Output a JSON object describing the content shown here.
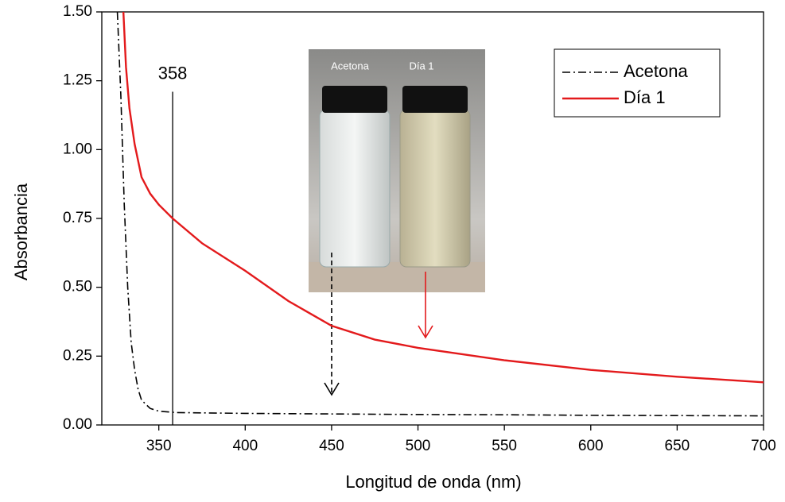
{
  "chart_data": {
    "type": "line",
    "x_label": "Longitud de onda (nm)",
    "y_label": "Absorbancia",
    "xlim": [
      317,
      700
    ],
    "ylim": [
      0,
      1.5
    ],
    "xticks": [
      350,
      400,
      450,
      500,
      550,
      600,
      650,
      700
    ],
    "yticks": [
      {
        "value": 0,
        "label": "0.00"
      },
      {
        "value": 0.25,
        "label": "0.25"
      },
      {
        "value": 0.5,
        "label": "0.50"
      },
      {
        "value": 0.75,
        "label": "0.75"
      },
      {
        "value": 1,
        "label": "1.00"
      },
      {
        "value": 1.25,
        "label": "1.25"
      },
      {
        "value": 1.5,
        "label": "1.50"
      }
    ],
    "legend": "upper right",
    "series": [
      {
        "name": "Acetona",
        "color": "#000000",
        "dash": "dash-dot",
        "x": [
          326,
          328,
          330,
          332,
          334,
          336,
          338,
          340,
          345,
          350,
          360,
          400,
          450,
          500,
          550,
          600,
          650,
          700
        ],
        "values": [
          1.5,
          1.2,
          0.8,
          0.5,
          0.3,
          0.2,
          0.13,
          0.09,
          0.06,
          0.05,
          0.045,
          0.042,
          0.04,
          0.038,
          0.037,
          0.035,
          0.034,
          0.033
        ]
      },
      {
        "name": "Día 1",
        "color": "#e31a1c",
        "dash": "solid",
        "x": [
          329.5,
          331,
          333,
          336,
          340,
          345,
          350,
          358,
          375,
          400,
          425,
          450,
          475,
          500,
          550,
          600,
          650,
          700
        ],
        "values": [
          1.5,
          1.3,
          1.15,
          1.02,
          0.9,
          0.84,
          0.8,
          0.75,
          0.66,
          0.56,
          0.45,
          0.36,
          0.31,
          0.28,
          0.235,
          0.2,
          0.175,
          0.155
        ]
      }
    ],
    "annotations": [
      {
        "text": "358",
        "x": 358,
        "y": 1.21
      }
    ],
    "inset": {
      "labels": [
        "Acetona",
        "Día 1"
      ]
    }
  }
}
